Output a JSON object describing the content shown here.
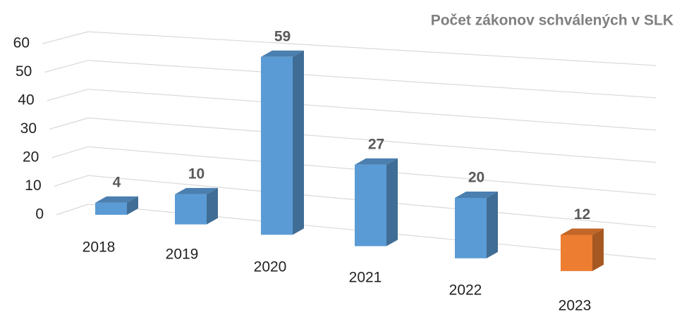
{
  "chart_data": {
    "type": "bar3d",
    "title": "Počet zákonov schválených v SLK",
    "categories": [
      "2018",
      "2019",
      "2020",
      "2021",
      "2022",
      "2023"
    ],
    "values": [
      4,
      10,
      59,
      27,
      20,
      12
    ],
    "colors": [
      "#5b9bd5",
      "#5b9bd5",
      "#5b9bd5",
      "#5b9bd5",
      "#5b9bd5",
      "#ed7d31"
    ],
    "ylim": [
      0,
      60
    ],
    "yticks": [
      0,
      10,
      20,
      30,
      40,
      50,
      60
    ],
    "grid": true
  }
}
